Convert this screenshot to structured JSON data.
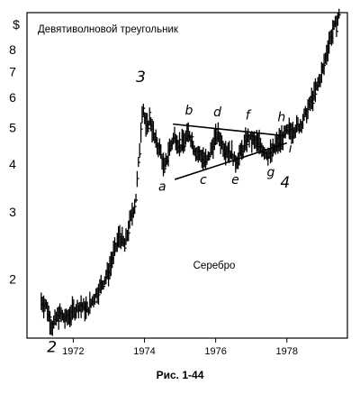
{
  "chart_data": {
    "type": "line",
    "title": "Девятиволновой треугольник",
    "annotation": "Серебро",
    "caption": "Рис. 1-44",
    "y_unit_label": "$",
    "y_scale": "log",
    "ylim": [
      1.4,
      10
    ],
    "y_ticks": [
      {
        "value": 2,
        "label": "2"
      },
      {
        "value": 3,
        "label": "3"
      },
      {
        "value": 4,
        "label": "4"
      },
      {
        "value": 5,
        "label": "5"
      },
      {
        "value": 6,
        "label": "6"
      },
      {
        "value": 7,
        "label": "7"
      },
      {
        "value": 8,
        "label": "8"
      }
    ],
    "xlim": [
      1970.7,
      1979.7
    ],
    "x_ticks": [
      {
        "value": 1972,
        "label": "1972"
      },
      {
        "value": 1974,
        "label": "1974"
      },
      {
        "value": 1976,
        "label": "1976"
      },
      {
        "value": 1978,
        "label": "1978"
      }
    ],
    "series": [
      {
        "points": [
          [
            1971.1,
            1.75
          ],
          [
            1971.25,
            1.7
          ],
          [
            1971.4,
            1.5
          ],
          [
            1971.6,
            1.62
          ],
          [
            1971.8,
            1.57
          ],
          [
            1972.0,
            1.65
          ],
          [
            1972.2,
            1.7
          ],
          [
            1972.4,
            1.66
          ],
          [
            1972.6,
            1.8
          ],
          [
            1972.8,
            1.93
          ],
          [
            1973.0,
            2.1
          ],
          [
            1973.15,
            2.35
          ],
          [
            1973.3,
            2.6
          ],
          [
            1973.45,
            2.45
          ],
          [
            1973.6,
            2.85
          ],
          [
            1973.75,
            3.2
          ],
          [
            1973.85,
            4.2
          ],
          [
            1973.95,
            5.8
          ],
          [
            1974.05,
            4.9
          ],
          [
            1974.15,
            5.3
          ],
          [
            1974.3,
            4.6
          ],
          [
            1974.45,
            4.35
          ],
          [
            1974.55,
            3.85
          ],
          [
            1974.7,
            4.4
          ],
          [
            1974.85,
            4.75
          ],
          [
            1975.0,
            4.45
          ],
          [
            1975.15,
            4.65
          ],
          [
            1975.25,
            4.85
          ],
          [
            1975.45,
            4.3
          ],
          [
            1975.6,
            4.2
          ],
          [
            1975.75,
            4.05
          ],
          [
            1975.9,
            4.45
          ],
          [
            1976.05,
            4.8
          ],
          [
            1976.25,
            4.4
          ],
          [
            1976.45,
            4.3
          ],
          [
            1976.55,
            4.05
          ],
          [
            1976.75,
            4.35
          ],
          [
            1976.9,
            4.7
          ],
          [
            1977.05,
            4.6
          ],
          [
            1977.25,
            4.5
          ],
          [
            1977.4,
            4.3
          ],
          [
            1977.55,
            4.25
          ],
          [
            1977.7,
            4.5
          ],
          [
            1977.85,
            4.65
          ],
          [
            1978.0,
            4.85
          ],
          [
            1978.2,
            4.95
          ],
          [
            1978.4,
            5.1
          ],
          [
            1978.6,
            5.6
          ],
          [
            1978.8,
            6.2
          ],
          [
            1979.0,
            7.0
          ],
          [
            1979.2,
            8.5
          ],
          [
            1979.35,
            9.2
          ],
          [
            1979.5,
            10.0
          ]
        ]
      }
    ],
    "wave_labels": [
      {
        "text": "2",
        "x": 1971.4,
        "y": 1.5,
        "pos": "below",
        "size": "big"
      },
      {
        "text": "3",
        "x": 1973.9,
        "y": 5.9,
        "pos": "above",
        "size": "big"
      },
      {
        "text": "a",
        "x": 1974.5,
        "y": 3.85,
        "pos": "below",
        "size": "small"
      },
      {
        "text": "b",
        "x": 1975.25,
        "y": 4.85,
        "pos": "above",
        "size": "small"
      },
      {
        "text": "c",
        "x": 1975.65,
        "y": 4.0,
        "pos": "below",
        "size": "small"
      },
      {
        "text": "d",
        "x": 1976.05,
        "y": 4.8,
        "pos": "above",
        "size": "small"
      },
      {
        "text": "e",
        "x": 1976.55,
        "y": 4.0,
        "pos": "below",
        "size": "small"
      },
      {
        "text": "f",
        "x": 1976.9,
        "y": 4.7,
        "pos": "above",
        "size": "small"
      },
      {
        "text": "g",
        "x": 1977.55,
        "y": 4.2,
        "pos": "below",
        "size": "small"
      },
      {
        "text": "h",
        "x": 1977.85,
        "y": 4.65,
        "pos": "above",
        "size": "small"
      },
      {
        "text": "i",
        "x": 1977.95,
        "y": 4.3,
        "pos": "right",
        "size": "small"
      },
      {
        "text": "4",
        "x": 1977.95,
        "y": 4.05,
        "pos": "below",
        "size": "big"
      }
    ],
    "trendlines": [
      {
        "from": [
          1974.8,
          5.1
        ],
        "to": [
          1977.95,
          4.75
        ]
      },
      {
        "from": [
          1974.85,
          3.65
        ],
        "to": [
          1978.0,
          4.55
        ]
      }
    ]
  }
}
